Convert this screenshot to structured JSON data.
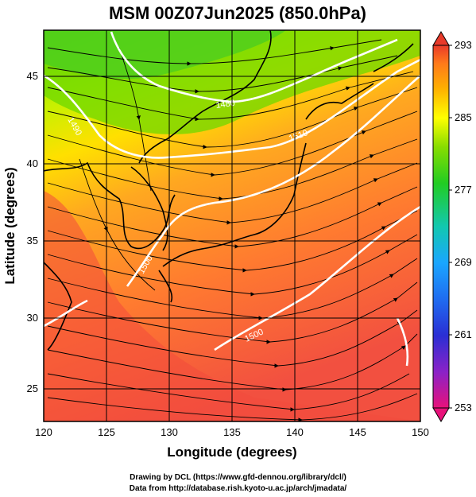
{
  "title": "MSM 00Z07Jun2025 (850.0hPa)",
  "map": {
    "xlabel": "Longitude (degrees)",
    "ylabel": "Latitude  (degrees)",
    "lon_range": [
      120,
      150
    ],
    "lat_range": [
      22.4,
      48
    ],
    "lon_ticks": [
      "120",
      "125",
      "130",
      "135",
      "140",
      "145",
      "150"
    ],
    "lat_ticks": [
      "25",
      "30",
      "35",
      "40",
      "45"
    ],
    "field": "temperature",
    "colorbar": {
      "range": [
        253,
        293
      ],
      "tick_labels": [
        "293",
        "285",
        "277",
        "269",
        "261",
        "253"
      ],
      "colors": [
        "#e8117a",
        "#2a2fd4",
        "#1aa6ff",
        "#12c8b0",
        "#22cc22",
        "#aae000",
        "#ffff00",
        "#ffb000",
        "#ff7a1a",
        "#e83a2a"
      ]
    },
    "contour_labels": [
      "1480",
      "1490",
      "1500",
      "1500",
      "1510"
    ],
    "streamlines": "wind at 850 hPa"
  },
  "credits": {
    "line1": "Drawing by DCL (https://www.gfd-dennou.org/library/dcl/)",
    "line2": "Data from http://database.rish.kyoto-u.ac.jp/arch/jmadata/"
  }
}
